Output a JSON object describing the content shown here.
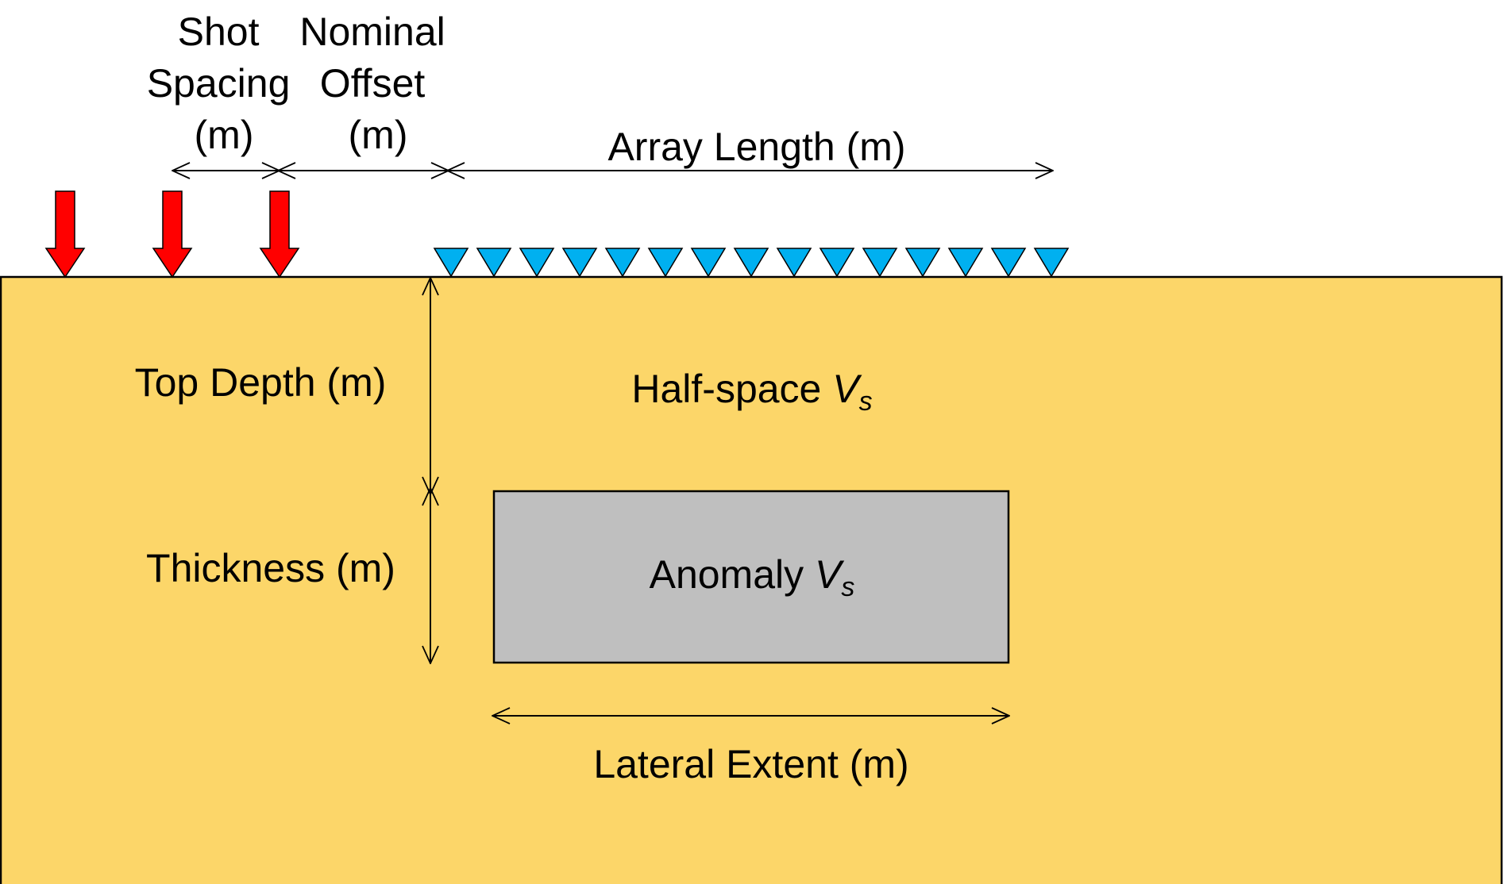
{
  "labels": {
    "shot_spacing": [
      "Shot",
      "Spacing",
      "(m)"
    ],
    "nominal_offset": [
      "Nominal",
      "Offset",
      "(m)"
    ],
    "array_length": "Array Length (m)",
    "top_depth": "Top Depth (m)",
    "thickness": "Thickness (m)",
    "halfspace_text": "Half-space ",
    "anomaly_text": "Anomaly ",
    "vs_main": "V",
    "vs_sub": "s",
    "lateral_extent": "Lateral Extent (m)"
  },
  "elements": {
    "shot_count": 3,
    "receiver_count": 15
  },
  "colors": {
    "halfspace_fill": "#FCD669",
    "anomaly_fill": "#BFBFBF",
    "shot_fill": "#FF0000",
    "receiver_fill": "#00B0F0",
    "line": "#000000"
  },
  "icons": {
    "shot": "down-arrow",
    "receiver": "inverted-triangle"
  }
}
